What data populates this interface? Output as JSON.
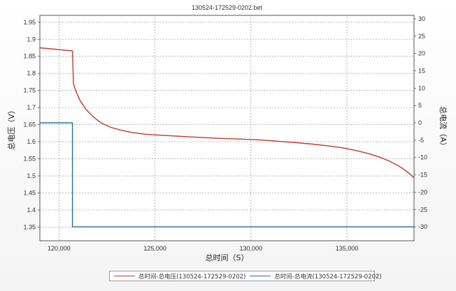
{
  "chart_data": {
    "type": "line",
    "title": "130524-172529-0202.bet",
    "xlabel": "总时间（S）",
    "ylabel_left": "总电压（V）",
    "ylabel_right": "总电流（A）",
    "xlim": [
      119000,
      138500
    ],
    "ylim_left": [
      1.31,
      1.97
    ],
    "ylim_right": [
      -34,
      31
    ],
    "x_ticks": [
      {
        "value": 120000,
        "label": "120,000"
      },
      {
        "value": 125000,
        "label": "125,000"
      },
      {
        "value": 130000,
        "label": "130,000"
      },
      {
        "value": 135000,
        "label": "135,000"
      }
    ],
    "y_left_ticks": [
      {
        "value": 1.35,
        "label": "1.35"
      },
      {
        "value": 1.4,
        "label": "1.4"
      },
      {
        "value": 1.45,
        "label": "1.45"
      },
      {
        "value": 1.5,
        "label": "1.5"
      },
      {
        "value": 1.55,
        "label": "1.55"
      },
      {
        "value": 1.6,
        "label": "1.6"
      },
      {
        "value": 1.65,
        "label": "1.65"
      },
      {
        "value": 1.7,
        "label": "1.7"
      },
      {
        "value": 1.75,
        "label": "1.75"
      },
      {
        "value": 1.8,
        "label": "1.8"
      },
      {
        "value": 1.85,
        "label": "1.85"
      },
      {
        "value": 1.9,
        "label": "1.9"
      },
      {
        "value": 1.95,
        "label": "1.95"
      }
    ],
    "y_right_ticks": [
      {
        "value": 30,
        "label": "30"
      },
      {
        "value": 25,
        "label": "25"
      },
      {
        "value": 20,
        "label": "20"
      },
      {
        "value": 15,
        "label": "15"
      },
      {
        "value": 10,
        "label": "10"
      },
      {
        "value": 5,
        "label": "5"
      },
      {
        "value": 0,
        "label": "0"
      },
      {
        "value": -5,
        "label": "-5"
      },
      {
        "value": -10,
        "label": "-10"
      },
      {
        "value": -15,
        "label": "-15"
      },
      {
        "value": -20,
        "label": "-20"
      },
      {
        "value": -25,
        "label": "-25"
      },
      {
        "value": -30,
        "label": "-30"
      }
    ],
    "grid": true,
    "legend_position": "bottom",
    "series": [
      {
        "name": "总时间-总电压(130524-172529-0202)",
        "axis": "left",
        "color": "#c0392b",
        "x": [
          119000,
          120700,
          120700,
          120750,
          120900,
          121100,
          121400,
          121800,
          122200,
          122700,
          123200,
          123800,
          124500,
          125300,
          126200,
          127200,
          128300,
          129400,
          130500,
          131500,
          132400,
          133200,
          134000,
          134800,
          135500,
          136200,
          136800,
          137300,
          137700,
          138000,
          138300,
          138500
        ],
        "y": [
          1.875,
          1.866,
          1.865,
          1.77,
          1.745,
          1.72,
          1.695,
          1.672,
          1.655,
          1.642,
          1.634,
          1.627,
          1.622,
          1.619,
          1.616,
          1.613,
          1.61,
          1.608,
          1.605,
          1.601,
          1.597,
          1.593,
          1.588,
          1.582,
          1.574,
          1.564,
          1.553,
          1.541,
          1.529,
          1.518,
          1.505,
          1.494
        ]
      },
      {
        "name": "总时间-总电流(130524-172529-0202)",
        "axis": "right",
        "color": "#2c6e9a",
        "x": [
          119000,
          120700,
          120700,
          138500
        ],
        "y": [
          0,
          0,
          -30,
          -30
        ]
      }
    ]
  }
}
